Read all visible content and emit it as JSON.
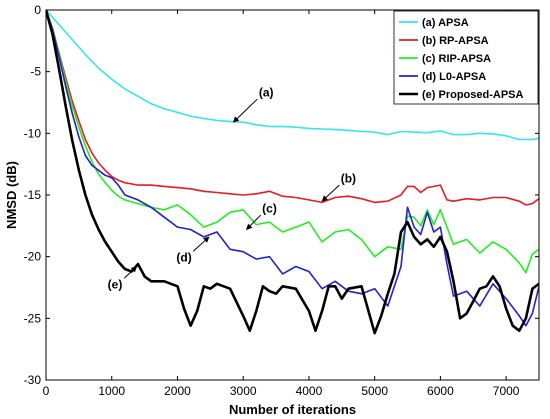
{
  "chart_data": {
    "type": "line",
    "title": "",
    "xlabel": "Number of iterations",
    "ylabel": "NMSD (dB)",
    "xlim": [
      0,
      7500
    ],
    "ylim": [
      -30,
      0
    ],
    "xticks": [
      0,
      1000,
      2000,
      3000,
      4000,
      5000,
      6000,
      7000
    ],
    "yticks": [
      0,
      -5,
      -10,
      -15,
      -20,
      -25,
      -30
    ],
    "grid": false,
    "legend_position": "top-right",
    "series": [
      {
        "name": "(a) APSA",
        "color": "#33e6f0",
        "x": [
          0,
          200,
          400,
          600,
          800,
          1000,
          1200,
          1400,
          1600,
          1800,
          2000,
          2200,
          2400,
          2600,
          2800,
          3000,
          3200,
          3400,
          3600,
          3800,
          4000,
          4200,
          4400,
          4600,
          4800,
          5000,
          5200,
          5400,
          5600,
          5800,
          6000,
          6200,
          6400,
          6600,
          6800,
          7000,
          7200,
          7400,
          7500
        ],
        "y": [
          0,
          -1.2,
          -2.4,
          -3.6,
          -4.7,
          -5.6,
          -6.4,
          -7.0,
          -7.6,
          -8.0,
          -8.3,
          -8.6,
          -8.8,
          -8.95,
          -9.05,
          -9.1,
          -9.3,
          -9.45,
          -9.45,
          -9.5,
          -9.6,
          -9.65,
          -9.7,
          -9.75,
          -9.85,
          -9.9,
          -10.1,
          -9.85,
          -9.9,
          -9.95,
          -9.8,
          -10.1,
          -10.1,
          -10.0,
          -10.05,
          -10.2,
          -10.5,
          -10.5,
          -10.4
        ]
      },
      {
        "name": "(b) RP-APSA",
        "color": "#e51c23",
        "x": [
          0,
          100,
          200,
          300,
          400,
          500,
          600,
          700,
          800,
          900,
          1000,
          1100,
          1200,
          1400,
          1600,
          1800,
          2000,
          2200,
          2400,
          2600,
          2800,
          3000,
          3200,
          3400,
          3600,
          3800,
          4000,
          4200,
          4400,
          4600,
          4800,
          5000,
          5200,
          5400,
          5500,
          5600,
          5700,
          5800,
          5900,
          6000,
          6100,
          6200,
          6400,
          6600,
          6800,
          7000,
          7200,
          7300,
          7400,
          7500
        ],
        "y": [
          0,
          -1.5,
          -3.5,
          -5.5,
          -7.4,
          -9.0,
          -10.5,
          -11.6,
          -12.4,
          -13.0,
          -13.5,
          -13.8,
          -14.0,
          -14.2,
          -14.2,
          -14.3,
          -14.4,
          -14.5,
          -14.7,
          -14.8,
          -14.9,
          -15.0,
          -14.9,
          -14.7,
          -15.1,
          -15.2,
          -15.4,
          -15.6,
          -15.2,
          -15.1,
          -15.3,
          -15.6,
          -15.5,
          -15.0,
          -14.3,
          -14.3,
          -14.8,
          -14.4,
          -14.3,
          -14.2,
          -15.4,
          -15.5,
          -15.3,
          -15.4,
          -15.2,
          -15.2,
          -15.5,
          -15.8,
          -15.7,
          -15.3
        ]
      },
      {
        "name": "(c) RIP-APSA",
        "color": "#22ee22",
        "x": [
          0,
          100,
          200,
          300,
          400,
          500,
          600,
          700,
          800,
          900,
          1000,
          1100,
          1200,
          1400,
          1600,
          1800,
          2000,
          2200,
          2400,
          2600,
          2800,
          3000,
          3200,
          3400,
          3600,
          3800,
          4000,
          4200,
          4400,
          4600,
          4800,
          5000,
          5200,
          5400,
          5500,
          5600,
          5700,
          5800,
          5900,
          6000,
          6100,
          6200,
          6400,
          6600,
          6800,
          7000,
          7200,
          7300,
          7400,
          7500
        ],
        "y": [
          0,
          -1.5,
          -3.6,
          -5.8,
          -7.8,
          -9.5,
          -11.0,
          -12.3,
          -13.3,
          -14.0,
          -14.6,
          -15.1,
          -15.4,
          -15.7,
          -16.0,
          -16.2,
          -15.8,
          -16.6,
          -17.6,
          -17.2,
          -16.4,
          -16.2,
          -17.4,
          -17.2,
          -18.0,
          -17.6,
          -17.2,
          -18.8,
          -18.0,
          -17.8,
          -18.6,
          -20.0,
          -19.2,
          -19.4,
          -16.7,
          -16.8,
          -17.5,
          -16.2,
          -17.4,
          -16.2,
          -17.6,
          -19.0,
          -18.6,
          -19.7,
          -18.8,
          -19.4,
          -20.5,
          -21.3,
          -19.8,
          -19.4
        ]
      },
      {
        "name": "(d) L0-APSA",
        "color": "#2222cc",
        "x": [
          0,
          100,
          200,
          300,
          400,
          500,
          600,
          700,
          800,
          900,
          1000,
          1100,
          1200,
          1400,
          1600,
          1800,
          2000,
          2200,
          2400,
          2600,
          2800,
          3000,
          3200,
          3400,
          3600,
          3800,
          4000,
          4200,
          4400,
          4600,
          4800,
          5000,
          5200,
          5400,
          5500,
          5600,
          5700,
          5800,
          5900,
          6000,
          6100,
          6200,
          6400,
          6600,
          6800,
          7000,
          7200,
          7300,
          7400,
          7500
        ],
        "y": [
          0,
          -1.6,
          -3.8,
          -6.2,
          -8.4,
          -10.3,
          -11.8,
          -12.6,
          -13.0,
          -13.4,
          -13.6,
          -14.2,
          -15.0,
          -15.4,
          -16.0,
          -16.8,
          -17.6,
          -17.8,
          -18.4,
          -18.0,
          -19.4,
          -19.6,
          -20.2,
          -20.0,
          -21.4,
          -20.8,
          -21.2,
          -22.6,
          -22.0,
          -22.8,
          -23.0,
          -22.6,
          -24.0,
          -20.8,
          -16.0,
          -17.6,
          -18.2,
          -16.4,
          -18.0,
          -17.6,
          -20.6,
          -23.2,
          -22.8,
          -24.0,
          -22.2,
          -23.4,
          -24.8,
          -25.6,
          -24.6,
          -22.4
        ]
      },
      {
        "name": "(e) Proposed-APSA",
        "color": "#000000",
        "x": [
          0,
          100,
          200,
          300,
          400,
          500,
          600,
          700,
          800,
          900,
          1000,
          1100,
          1200,
          1300,
          1400,
          1500,
          1600,
          1800,
          2000,
          2100,
          2200,
          2300,
          2400,
          2500,
          2600,
          2800,
          3000,
          3100,
          3200,
          3300,
          3400,
          3500,
          3600,
          3800,
          4000,
          4100,
          4200,
          4300,
          4400,
          4500,
          4600,
          4800,
          5000,
          5100,
          5200,
          5300,
          5400,
          5500,
          5600,
          5700,
          5800,
          5900,
          6000,
          6100,
          6200,
          6300,
          6400,
          6500,
          6600,
          6700,
          6800,
          6900,
          7000,
          7100,
          7200,
          7300,
          7400,
          7500
        ],
        "y": [
          0,
          -2.0,
          -4.8,
          -7.8,
          -10.6,
          -13.0,
          -15.0,
          -16.6,
          -17.8,
          -18.8,
          -19.6,
          -20.4,
          -21.0,
          -21.2,
          -20.6,
          -21.6,
          -22.0,
          -22.0,
          -22.4,
          -24.2,
          -25.6,
          -24.4,
          -22.4,
          -22.6,
          -22.2,
          -22.6,
          -24.8,
          -26.0,
          -24.4,
          -22.4,
          -22.8,
          -23.0,
          -22.4,
          -22.6,
          -24.4,
          -26.0,
          -24.4,
          -22.4,
          -22.4,
          -23.4,
          -22.6,
          -22.4,
          -26.2,
          -24.8,
          -23.0,
          -21.4,
          -18.0,
          -17.2,
          -18.4,
          -19.0,
          -18.6,
          -19.2,
          -18.4,
          -19.6,
          -22.0,
          -25.0,
          -24.6,
          -23.6,
          -22.6,
          -22.4,
          -21.6,
          -22.4,
          -24.2,
          -25.6,
          -26.0,
          -25.0,
          -22.6,
          -22.2
        ]
      }
    ],
    "annotations": [
      {
        "label": "(a)",
        "text_x": 3350,
        "text_y": -7.0,
        "arrow_x": 2850,
        "arrow_y": -9.1
      },
      {
        "label": "(b)",
        "text_x": 4600,
        "text_y": -14.0,
        "arrow_x": 4200,
        "arrow_y": -15.5
      },
      {
        "label": "(c)",
        "text_x": 3400,
        "text_y": -16.4,
        "arrow_x": 3050,
        "arrow_y": -17.8
      },
      {
        "label": "(d)",
        "text_x": 2100,
        "text_y": -20.4,
        "arrow_x": 2480,
        "arrow_y": -18.4
      },
      {
        "label": "(e)",
        "text_x": 1050,
        "text_y": -22.6,
        "arrow_x": 1380,
        "arrow_y": -20.8
      }
    ]
  }
}
